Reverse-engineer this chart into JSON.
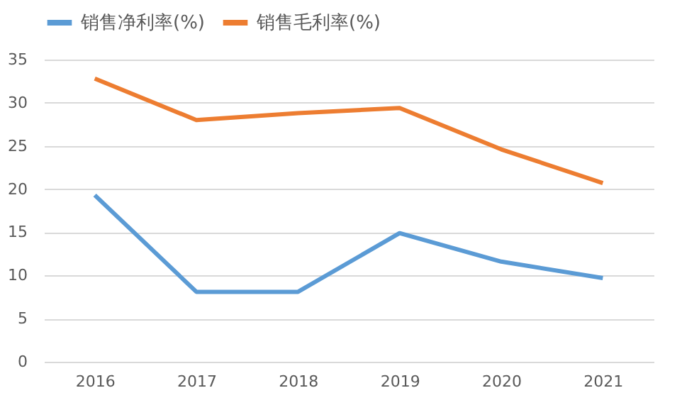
{
  "chart_data": {
    "type": "line",
    "categories": [
      "2016",
      "2017",
      "2018",
      "2019",
      "2020",
      "2021"
    ],
    "series": [
      {
        "name": "销售净利率(%)",
        "color": "#5b9bd5",
        "values": [
          19.3,
          8.1,
          8.1,
          14.9,
          11.6,
          9.7
        ]
      },
      {
        "name": "销售毛利率(%)",
        "color": "#ed7d31",
        "values": [
          32.8,
          28.0,
          28.8,
          29.4,
          24.6,
          20.7
        ]
      }
    ],
    "ylim": [
      0,
      35
    ],
    "yticks": [
      0,
      5,
      10,
      15,
      20,
      25,
      30,
      35
    ],
    "grid": "y",
    "legend": "top",
    "marker": "none",
    "line_style": "solid"
  }
}
